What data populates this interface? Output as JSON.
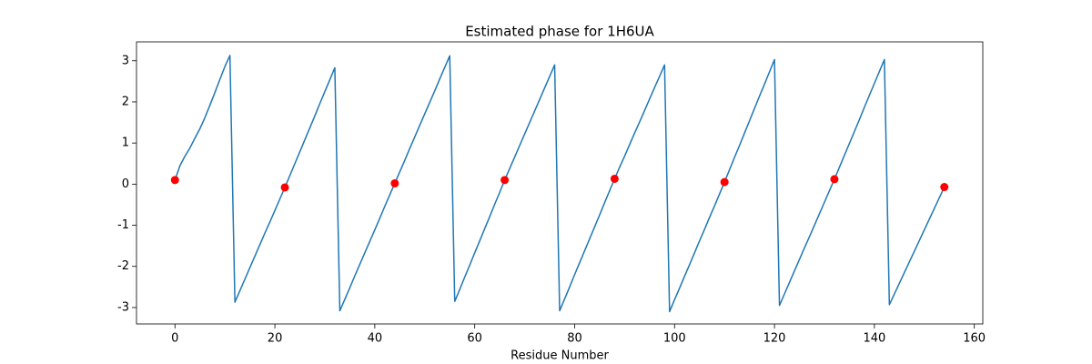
{
  "chart_data": {
    "type": "line",
    "title": "Estimated phase for 1H6UA",
    "x_label": "Residue Number",
    "xlim": [
      -7.7,
      161.7
    ],
    "ylim": [
      -3.4,
      3.46
    ],
    "xticks": [
      0,
      20,
      40,
      60,
      80,
      100,
      120,
      140,
      160
    ],
    "yticks": [
      -3,
      -2,
      -1,
      0,
      1,
      2,
      3
    ],
    "x": [
      0,
      1,
      2,
      3,
      4,
      5,
      6,
      7,
      8,
      9,
      10,
      11,
      12,
      13,
      14,
      15,
      16,
      17,
      18,
      19,
      20,
      21,
      22,
      23,
      24,
      25,
      26,
      27,
      28,
      29,
      30,
      31,
      32,
      33,
      34,
      35,
      36,
      37,
      38,
      39,
      40,
      41,
      42,
      43,
      44,
      45,
      46,
      47,
      48,
      49,
      50,
      51,
      52,
      53,
      54,
      55,
      56,
      57,
      58,
      59,
      60,
      61,
      62,
      63,
      64,
      65,
      66,
      67,
      68,
      69,
      70,
      71,
      72,
      73,
      74,
      75,
      76,
      77,
      78,
      79,
      80,
      81,
      82,
      83,
      84,
      85,
      86,
      87,
      88,
      89,
      90,
      91,
      92,
      93,
      94,
      95,
      96,
      97,
      98,
      99,
      100,
      101,
      102,
      103,
      104,
      105,
      106,
      107,
      108,
      109,
      110,
      111,
      112,
      113,
      114,
      115,
      116,
      117,
      118,
      119,
      120,
      121,
      122,
      123,
      124,
      125,
      126,
      127,
      128,
      129,
      130,
      131,
      132,
      133,
      134,
      135,
      136,
      137,
      138,
      139,
      140,
      141,
      142,
      143,
      144,
      145,
      146,
      147,
      148,
      149,
      150,
      151,
      152,
      153,
      154
    ],
    "series": [
      {
        "color": "#1f77b4",
        "values": [
          0.1,
          0.45,
          0.68,
          0.88,
          1.12,
          1.35,
          1.62,
          1.92,
          2.23,
          2.55,
          2.86,
          3.13,
          -2.87,
          -2.59,
          -2.31,
          -2.03,
          -1.75,
          -1.47,
          -1.19,
          -0.92,
          -0.64,
          -0.36,
          -0.08,
          0.21,
          0.5,
          0.79,
          1.08,
          1.37,
          1.66,
          1.96,
          2.25,
          2.54,
          2.83,
          -3.08,
          -2.8,
          -2.52,
          -2.23,
          -1.95,
          -1.67,
          -1.39,
          -1.11,
          -0.83,
          -0.54,
          -0.26,
          0.02,
          0.3,
          0.58,
          0.87,
          1.15,
          1.43,
          1.71,
          1.99,
          2.27,
          2.56,
          2.84,
          3.12,
          -2.85,
          -2.56,
          -2.26,
          -1.97,
          -1.67,
          -1.38,
          -1.08,
          -0.79,
          -0.49,
          -0.2,
          0.1,
          0.38,
          0.66,
          0.94,
          1.22,
          1.5,
          1.78,
          2.06,
          2.34,
          2.62,
          2.9,
          -3.08,
          -2.79,
          -2.5,
          -2.2,
          -1.91,
          -1.62,
          -1.33,
          -1.04,
          -0.75,
          -0.45,
          -0.16,
          0.13,
          0.41,
          0.68,
          0.96,
          1.24,
          1.51,
          1.79,
          2.07,
          2.35,
          2.62,
          2.9,
          -3.1,
          -2.81,
          -2.53,
          -2.24,
          -1.96,
          -1.67,
          -1.38,
          -1.1,
          -0.81,
          -0.53,
          -0.24,
          0.05,
          0.35,
          0.65,
          0.94,
          1.24,
          1.54,
          1.84,
          2.14,
          2.43,
          2.73,
          3.03,
          -2.95,
          -2.67,
          -2.39,
          -2.11,
          -1.83,
          -1.55,
          -1.28,
          -1.0,
          -0.72,
          -0.44,
          -0.16,
          0.12,
          0.41,
          0.7,
          0.99,
          1.28,
          1.57,
          1.87,
          2.16,
          2.45,
          2.74,
          3.03,
          -2.93,
          -2.67,
          -2.41,
          -2.15,
          -1.89,
          -1.63,
          -1.37,
          -1.11,
          -0.85,
          -0.59,
          -0.33,
          -0.07
        ]
      }
    ],
    "markers": {
      "color": "#ff0000",
      "x": [
        0,
        22,
        44,
        66,
        88,
        110,
        132,
        154
      ],
      "values": [
        0.1,
        -0.08,
        0.02,
        0.1,
        0.13,
        0.05,
        0.12,
        -0.07
      ]
    }
  }
}
